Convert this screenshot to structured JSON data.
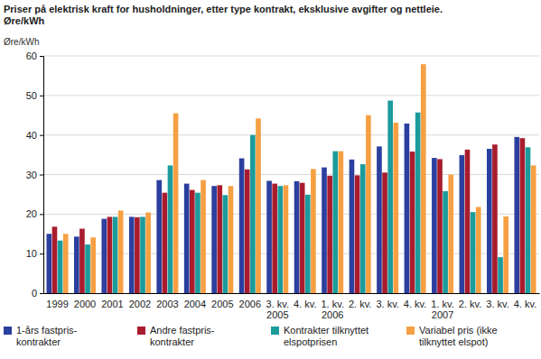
{
  "chart_data": {
    "type": "bar",
    "title": "Priser på elektrisk kraft for husholdninger, etter type kontrakt, eksklusive avgifter og nettleie.\nØre/kWh",
    "y_label": "Øre/kWh",
    "categories": [
      "1999",
      "2000",
      "2001",
      "2002",
      "2003",
      "2004",
      "2005",
      "2006",
      "3. kv.\n2005",
      "4. kv.",
      "1. kv.\n2006",
      "2. kv.",
      "3. kv.",
      "4. kv.",
      "1. kv.\n2007",
      "2. kv.",
      "3. kv.",
      "4. kv."
    ],
    "series": [
      {
        "name": "1-års fastpris-\nkontrakter",
        "color": "#2b3f9e",
        "values": [
          15,
          14.3,
          18.8,
          19.3,
          28.6,
          27.7,
          27.1,
          34.1,
          28.4,
          28.3,
          31.8,
          33.8,
          37.1,
          42.9,
          34.2,
          34.9,
          36.5,
          39.5
        ]
      },
      {
        "name": "Andre fastpris-\nkontrakter",
        "color": "#a81c2e",
        "values": [
          16.8,
          16.3,
          19.3,
          19.2,
          25.4,
          26.1,
          27.3,
          31.3,
          27.7,
          27.9,
          29.7,
          29.8,
          30.5,
          35.8,
          33.9,
          36.3,
          37.6,
          39.2
        ]
      },
      {
        "name": "Kontrakter tilknyttet\nelspotprisen",
        "color": "#1c9b9b",
        "values": [
          13.3,
          12.3,
          19.3,
          19.3,
          32.3,
          25.4,
          24.8,
          40,
          27.1,
          24.9,
          35.9,
          32.6,
          48.7,
          45.7,
          25.8,
          20.5,
          9.1,
          36.9
        ]
      },
      {
        "name": "Variabel pris (ikke\ntilknyttet elspot)",
        "color": "#f6a043",
        "values": [
          15,
          14.1,
          20.9,
          20.4,
          45.5,
          28.6,
          27.1,
          44.2,
          27.3,
          31.4,
          35.9,
          45,
          43.1,
          57.9,
          30,
          21.8,
          19.4,
          32.3
        ]
      }
    ],
    "ylim": [
      0,
      60
    ],
    "yticks": [
      0,
      10,
      20,
      30,
      40,
      50,
      60
    ],
    "grid": true,
    "legend": "bottom"
  }
}
